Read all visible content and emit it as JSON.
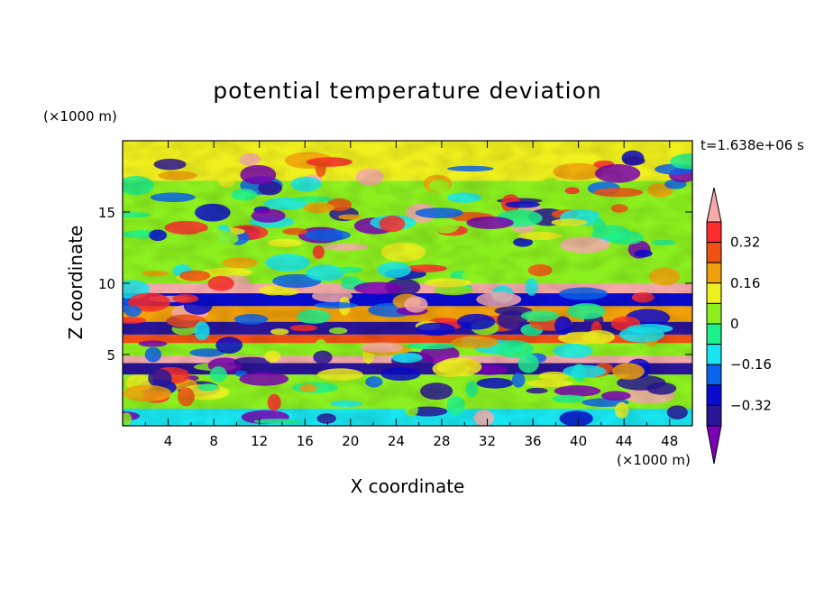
{
  "chart_data": {
    "type": "heatmap",
    "title": "potential temperature deviation",
    "xlabel": "X coordinate",
    "ylabel": "Z coordinate",
    "x_unit_label": "(×1000 m)",
    "y_unit_label": "(×1000 m)",
    "time_label": "t=1.638e+06 s",
    "xlim": [
      0,
      50
    ],
    "ylim": [
      0,
      20
    ],
    "x_ticks": [
      4,
      8,
      12,
      16,
      20,
      24,
      28,
      32,
      36,
      40,
      44,
      48
    ],
    "y_ticks": [
      5,
      10,
      15
    ],
    "colorbar": {
      "levels": [
        -0.4,
        -0.32,
        -0.24,
        -0.16,
        -0.08,
        0,
        0.08,
        0.16,
        0.24,
        0.32,
        0.4
      ],
      "tick_labels": [
        "0.32",
        "0.16",
        "0",
        "−0.16",
        "−0.32"
      ],
      "tick_values": [
        0.32,
        0.16,
        0,
        -0.16,
        -0.32
      ],
      "colors": [
        "#7b00b6",
        "#2a1598",
        "#0a0ad0",
        "#0a64f0",
        "#18e6f0",
        "#1ef08c",
        "#8cf01e",
        "#f0f01e",
        "#f0a00a",
        "#f05014",
        "#ff2d2d",
        "#f5aaaa"
      ],
      "extend": "both"
    },
    "bands": [
      {
        "z": [
          0,
          1.2
        ],
        "value": -0.1
      },
      {
        "z": [
          1.2,
          3.6
        ],
        "value": 0.05
      },
      {
        "z": [
          3.6,
          4.4
        ],
        "value": -0.4
      },
      {
        "z": [
          4.4,
          4.9
        ],
        "value": 0.45
      },
      {
        "z": [
          4.9,
          5.8
        ],
        "value": 0.02
      },
      {
        "z": [
          5.8,
          6.4
        ],
        "value": 0.3
      },
      {
        "z": [
          6.4,
          7.3
        ],
        "value": -0.38
      },
      {
        "z": [
          7.3,
          8.4
        ],
        "value": 0.2
      },
      {
        "z": [
          8.4,
          9.3
        ],
        "value": -0.32
      },
      {
        "z": [
          9.3,
          10.0
        ],
        "value": 0.42
      },
      {
        "z": [
          10.0,
          17.2
        ],
        "value": 0.0
      },
      {
        "z": [
          17.2,
          20.0
        ],
        "value": 0.08
      }
    ]
  }
}
